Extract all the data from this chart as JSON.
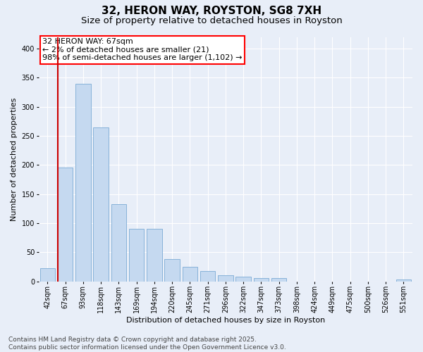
{
  "title": "32, HERON WAY, ROYSTON, SG8 7XH",
  "subtitle": "Size of property relative to detached houses in Royston",
  "xlabel": "Distribution of detached houses by size in Royston",
  "ylabel": "Number of detached properties",
  "footnote": "Contains HM Land Registry data © Crown copyright and database right 2025.\nContains public sector information licensed under the Open Government Licence v3.0.",
  "categories": [
    "42sqm",
    "67sqm",
    "93sqm",
    "118sqm",
    "143sqm",
    "169sqm",
    "194sqm",
    "220sqm",
    "245sqm",
    "271sqm",
    "296sqm",
    "322sqm",
    "347sqm",
    "373sqm",
    "398sqm",
    "424sqm",
    "449sqm",
    "475sqm",
    "500sqm",
    "526sqm",
    "551sqm"
  ],
  "values": [
    22,
    195,
    340,
    265,
    133,
    90,
    90,
    38,
    25,
    18,
    10,
    8,
    5,
    5,
    0,
    0,
    0,
    0,
    0,
    0,
    3
  ],
  "bar_color": "#c5d9f0",
  "bar_edge_color": "#7aaad4",
  "highlight_bar_index": 1,
  "vline_color": "#cc0000",
  "annotation_box_text": "32 HERON WAY: 67sqm\n← 2% of detached houses are smaller (21)\n98% of semi-detached houses are larger (1,102) →",
  "ylim": [
    0,
    420
  ],
  "yticks": [
    0,
    50,
    100,
    150,
    200,
    250,
    300,
    350,
    400
  ],
  "bg_color": "#e8eef8",
  "plot_bg_color": "#e8eef8",
  "grid_color": "#ffffff",
  "title_fontsize": 11,
  "subtitle_fontsize": 9.5,
  "axis_fontsize": 8,
  "tick_fontsize": 7,
  "annotation_fontsize": 8,
  "footnote_fontsize": 6.5
}
